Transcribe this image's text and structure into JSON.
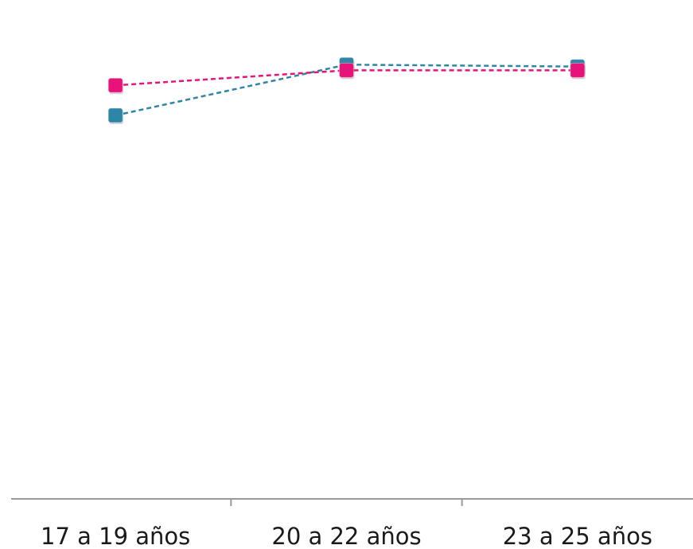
{
  "chart_data": {
    "type": "line",
    "categories": [
      "17 a 19 años",
      "20 a 22 años",
      "23 a 25 años"
    ],
    "series": [
      {
        "color": "#2e86a6",
        "marker": "square",
        "line_style": "dashed",
        "values": [
          64,
          91,
          90
        ]
      },
      {
        "color": "#e8137a",
        "marker": "square",
        "line_style": "dashed",
        "values": [
          80,
          88,
          88
        ]
      }
    ],
    "title": "",
    "xlabel": "",
    "ylabel": "",
    "ylim": [
      -140,
      100
    ],
    "grid": false,
    "legend": "none"
  }
}
